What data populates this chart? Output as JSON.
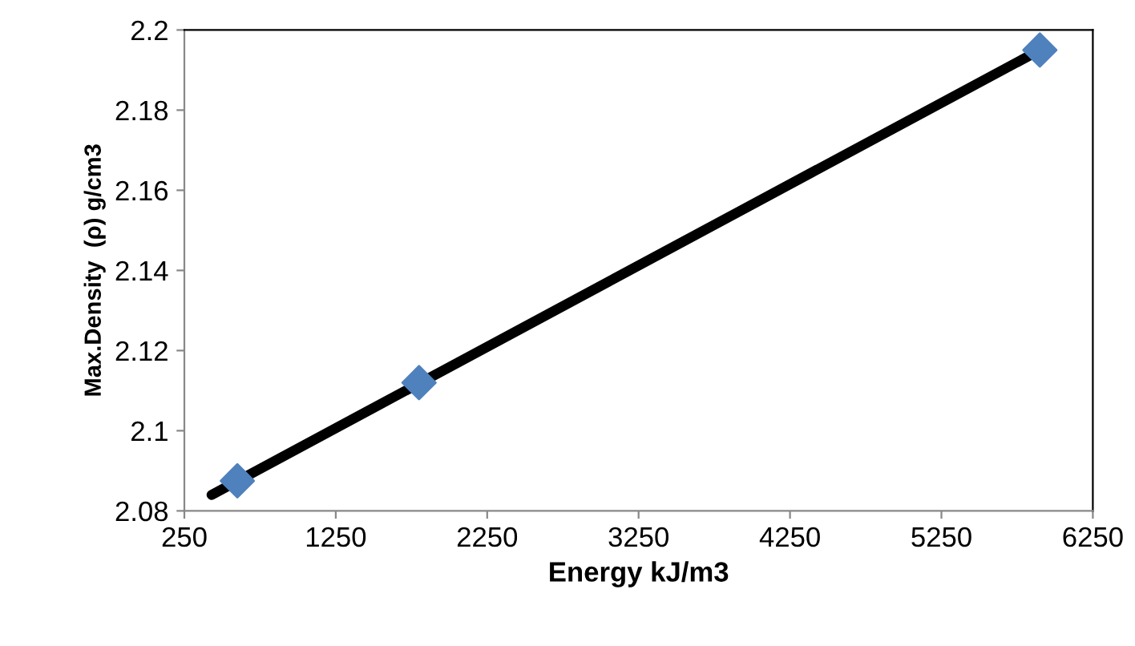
{
  "chart_data": {
    "type": "scatter",
    "xlabel": "Energy kJ/m3",
    "ylabel": "Max.Density  (ρ) g/cm3",
    "series": [
      {
        "type": "line",
        "color": "#000000",
        "x": [
          430,
          5900
        ],
        "values": [
          2.084,
          2.195
        ],
        "marker": "none"
      },
      {
        "color": "#4f81bd",
        "x": [
          600,
          1800,
          5900
        ],
        "values": [
          2.0875,
          2.112,
          2.195
        ],
        "marker": "diamond"
      }
    ],
    "xlim": [
      250,
      6250
    ],
    "xticks": [
      250,
      1250,
      2250,
      3250,
      4250,
      5250,
      6250
    ],
    "ylim": [
      2.08,
      2.2
    ],
    "yticks": [
      2.08,
      2.1,
      2.12,
      2.14,
      2.16,
      2.18,
      {
        "value": 2.2,
        "label": "2.2"
      }
    ],
    "grid": false,
    "legend": false
  }
}
